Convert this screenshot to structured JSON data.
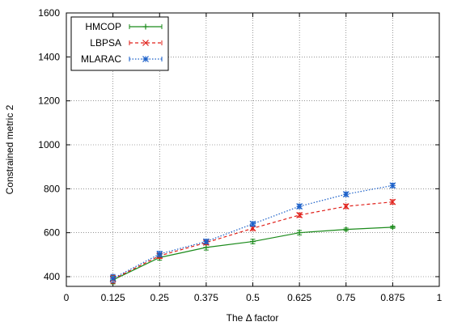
{
  "chart_data": {
    "type": "line",
    "title": "",
    "xlabel": "The Δ factor",
    "ylabel": "Constrained metric 2",
    "xlim": [
      0,
      1
    ],
    "ylim": [
      350,
      1600
    ],
    "x_ticks": [
      0,
      0.125,
      0.25,
      0.375,
      0.5,
      0.625,
      0.75,
      0.875,
      1
    ],
    "x_tick_labels": [
      "0",
      "0.125",
      "0.25",
      "0.375",
      "0.5",
      "0.625",
      "0.75",
      "0.875",
      "1"
    ],
    "y_ticks": [
      400,
      600,
      800,
      1000,
      1200,
      1400,
      1600
    ],
    "y_tick_labels": [
      "400",
      "600",
      "800",
      "1000",
      "1200",
      "1400",
      "1600"
    ],
    "grid": true,
    "legend_position": "top-left",
    "x": [
      0.125,
      0.25,
      0.375,
      0.5,
      0.625,
      0.75,
      0.875
    ],
    "series": [
      {
        "name": "HMCOP",
        "values": [
          385,
          487,
          533,
          560,
          600,
          615,
          625
        ],
        "errors": [
          18,
          12,
          12,
          10,
          10,
          6,
          5
        ],
        "color": "#1a8a1a",
        "dash": "solid",
        "marker": "plus"
      },
      {
        "name": "LBPSA",
        "values": [
          388,
          495,
          555,
          620,
          680,
          720,
          740
        ],
        "errors": [
          18,
          12,
          10,
          10,
          10,
          10,
          10
        ],
        "color": "#e0201a",
        "dash": "dashed",
        "marker": "x"
      },
      {
        "name": "MLARAC",
        "values": [
          392,
          503,
          560,
          640,
          720,
          775,
          815
        ],
        "errors": [
          18,
          12,
          10,
          10,
          10,
          10,
          10
        ],
        "color": "#1a5fc8",
        "dash": "dotted",
        "marker": "star"
      }
    ]
  }
}
